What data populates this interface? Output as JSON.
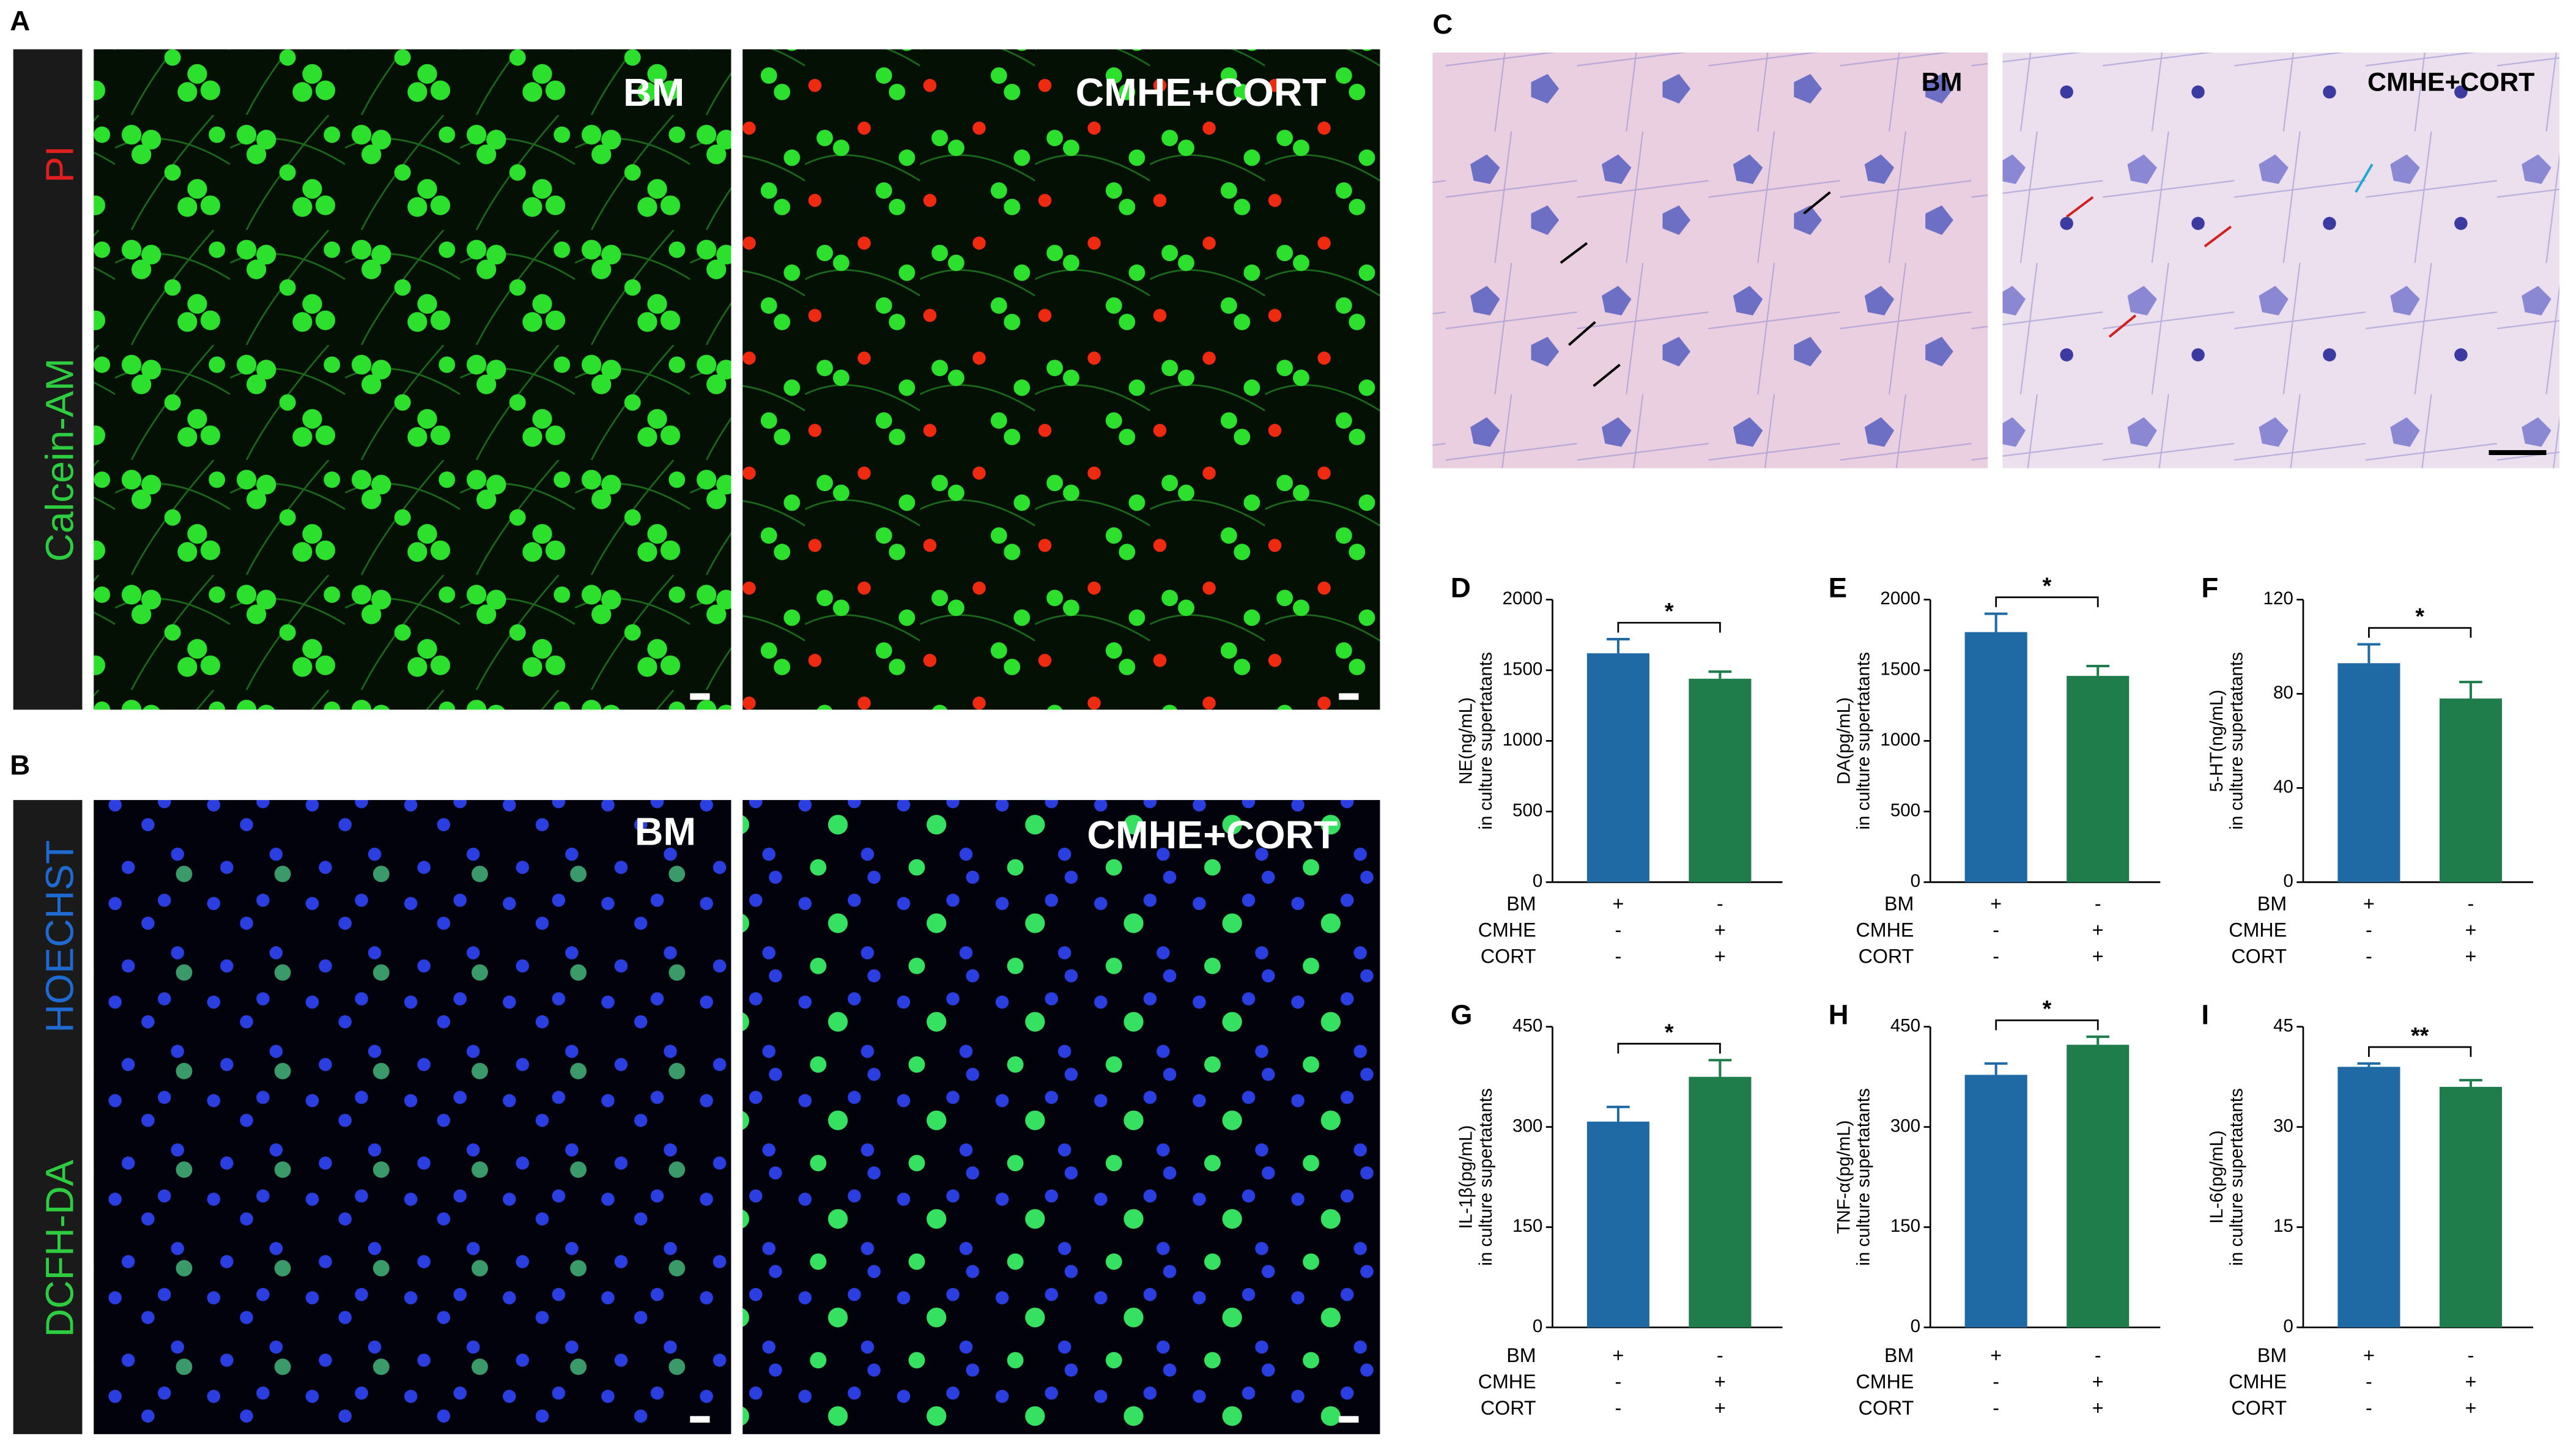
{
  "panels": {
    "a": {
      "label": "A",
      "side": [
        "PI",
        "Calcein-AM"
      ],
      "images": [
        "BM",
        "CMHE+CORT"
      ]
    },
    "b": {
      "label": "B",
      "side": [
        "HOECHST",
        "DCFH-DA"
      ],
      "images": [
        "BM",
        "CMHE+CORT"
      ]
    },
    "c": {
      "label": "C",
      "images": [
        "BM",
        "CMHE+CORT"
      ]
    }
  },
  "chart_data": [
    {
      "type": "bar",
      "label": "D",
      "ylabel": [
        "NE(ng/mL)",
        "in culture supertatants"
      ],
      "values": [
        1620,
        1440
      ],
      "errors": [
        100,
        50
      ],
      "colors": [
        "#1f6aa5",
        "#1e7d4b"
      ],
      "ylim": [
        0,
        2000
      ],
      "yticks": [
        0,
        500,
        1000,
        1500,
        2000
      ],
      "significance": "*",
      "conditions": {
        "rows": [
          "BM",
          "CMHE",
          "CORT"
        ],
        "signs": [
          [
            "+",
            "-"
          ],
          [
            "-",
            "+"
          ],
          [
            "-",
            "+"
          ]
        ]
      }
    },
    {
      "type": "bar",
      "label": "E",
      "ylabel": [
        "DA(pg/mL)",
        "in culture supertatants"
      ],
      "values": [
        1770,
        1460
      ],
      "errors": [
        130,
        70
      ],
      "colors": [
        "#1f6aa5",
        "#1e7d4b"
      ],
      "ylim": [
        0,
        2000
      ],
      "yticks": [
        0,
        500,
        1000,
        1500,
        2000
      ],
      "significance": "*",
      "conditions": {
        "rows": [
          "BM",
          "CMHE",
          "CORT"
        ],
        "signs": [
          [
            "+",
            "-"
          ],
          [
            "-",
            "+"
          ],
          [
            "-",
            "+"
          ]
        ]
      }
    },
    {
      "type": "bar",
      "label": "F",
      "ylabel": [
        "5-HT(ng/mL)",
        "in culture supertatants"
      ],
      "values": [
        93,
        78
      ],
      "errors": [
        8,
        7
      ],
      "colors": [
        "#1f6aa5",
        "#1e7d4b"
      ],
      "ylim": [
        0,
        120
      ],
      "yticks": [
        0,
        40,
        80,
        120
      ],
      "significance": "*",
      "conditions": {
        "rows": [
          "BM",
          "CMHE",
          "CORT"
        ],
        "signs": [
          [
            "+",
            "-"
          ],
          [
            "-",
            "+"
          ],
          [
            "-",
            "+"
          ]
        ]
      }
    },
    {
      "type": "bar",
      "label": "G",
      "ylabel": [
        "IL-1β(pg/mL)",
        "in culture supertatants"
      ],
      "values": [
        308,
        375
      ],
      "errors": [
        22,
        25
      ],
      "colors": [
        "#1f6aa5",
        "#1e7d4b"
      ],
      "ylim": [
        0,
        450
      ],
      "yticks": [
        0,
        150,
        300,
        450
      ],
      "significance": "*",
      "conditions": {
        "rows": [
          "BM",
          "CMHE",
          "CORT"
        ],
        "signs": [
          [
            "+",
            "-"
          ],
          [
            "-",
            "+"
          ],
          [
            "-",
            "+"
          ]
        ]
      }
    },
    {
      "type": "bar",
      "label": "H",
      "ylabel": [
        "TNF-α(pg/mL)",
        "in culture supertatants"
      ],
      "values": [
        378,
        423
      ],
      "errors": [
        17,
        12
      ],
      "colors": [
        "#1f6aa5",
        "#1e7d4b"
      ],
      "ylim": [
        0,
        450
      ],
      "yticks": [
        0,
        150,
        300,
        450
      ],
      "significance": "*",
      "conditions": {
        "rows": [
          "BM",
          "CMHE",
          "CORT"
        ],
        "signs": [
          [
            "+",
            "-"
          ],
          [
            "-",
            "+"
          ],
          [
            "-",
            "+"
          ]
        ]
      }
    },
    {
      "type": "bar",
      "label": "I",
      "ylabel": [
        "IL-6(pg/mL)",
        "in culture supertatants"
      ],
      "values": [
        39,
        36
      ],
      "errors": [
        0.5,
        1
      ],
      "colors": [
        "#1f6aa5",
        "#1e7d4b"
      ],
      "ylim": [
        0,
        45
      ],
      "yticks": [
        0,
        15,
        30,
        45
      ],
      "significance": "**",
      "conditions": {
        "rows": [
          "BM",
          "CMHE",
          "CORT"
        ],
        "signs": [
          [
            "+",
            "-"
          ],
          [
            "-",
            "+"
          ],
          [
            "-",
            "+"
          ]
        ]
      }
    }
  ]
}
